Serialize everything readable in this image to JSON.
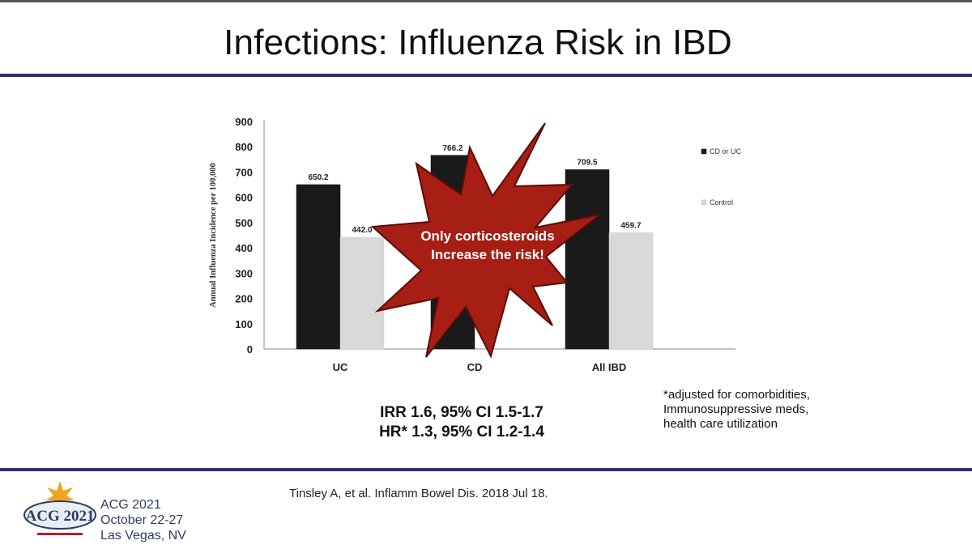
{
  "slide": {
    "title": "Infections: Influenza Risk in IBD",
    "stats": [
      "IRR 1.6, 95% CI 1.5-1.7",
      "HR* 1.3, 95% CI 1.2-1.4"
    ],
    "footnote": [
      "*adjusted for comorbidities,",
      "Immunosuppressive meds,",
      "health care utilization"
    ],
    "citation": "Tinsley A, et al. Inflamm Bowel Dis. 2018 Jul 18.",
    "starburst_text": [
      "Only corticosteroids",
      "Increase the risk!"
    ],
    "conference": {
      "name": "ACG 2021",
      "dates": "October 22-27",
      "location": "Las Vegas, NV",
      "logo_text": "ACG 2021"
    },
    "colors": {
      "rule": "#2e2f6a",
      "starburst": "#a61e14",
      "starburst_edge": "#5a0d08",
      "cd_uc_bar": "#1a1a1a",
      "control_bar": "#d9d9d9"
    }
  },
  "chart_data": {
    "type": "bar",
    "categories": [
      "UC",
      "CD",
      "All IBD"
    ],
    "series": [
      {
        "name": "CD or UC",
        "values": [
          650.2,
          766.2,
          709.5
        ],
        "labels": [
          "650.2",
          "766.2",
          "709.5"
        ],
        "color": "#1a1a1a"
      },
      {
        "name": "Control",
        "values": [
          442.0,
          null,
          459.7
        ],
        "labels": [
          "442.0",
          "",
          "459.7"
        ],
        "color": "#d9d9d9"
      }
    ],
    "ylabel": "Annual Influenza Incidence per 100,000",
    "xlabel": "",
    "ylim": [
      0,
      900
    ],
    "yticks": [
      0,
      100,
      200,
      300,
      400,
      500,
      600,
      700,
      800,
      900
    ],
    "legend_position": "right",
    "grid": false
  }
}
